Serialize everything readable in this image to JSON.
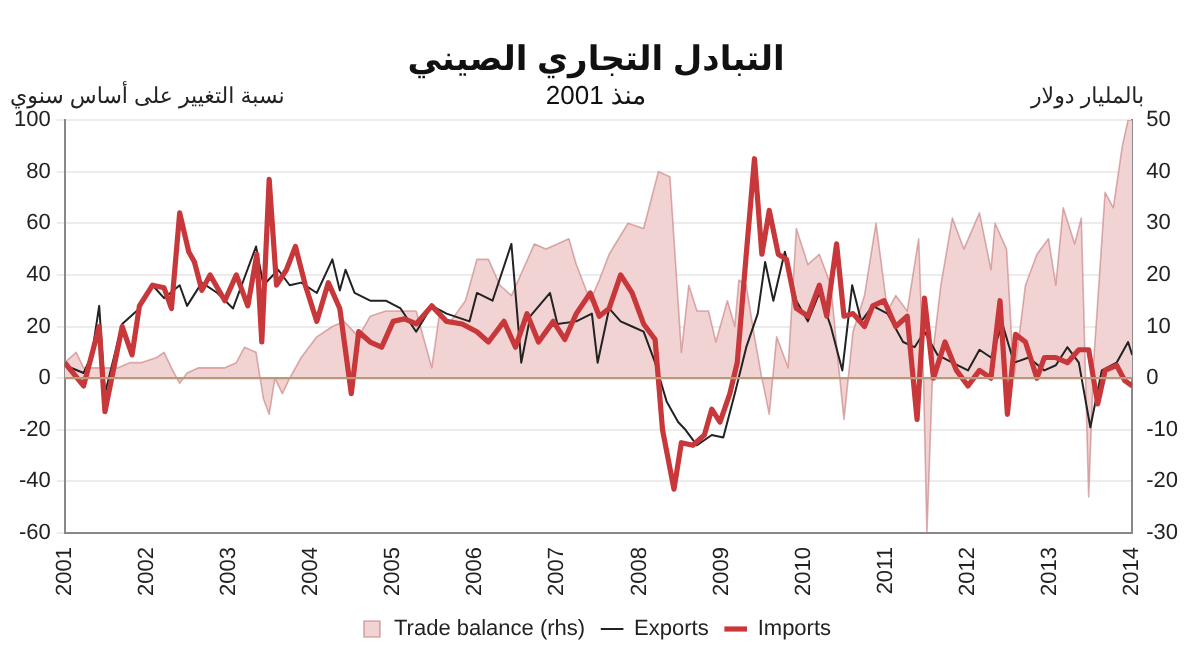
{
  "chart_data": {
    "type": "line",
    "title": "التبادل التجاري الصيني",
    "subtitle": "منذ 2001",
    "ylabel": "نسبة التغيير على أساس سنوي",
    "y2label": "بالمليار دولار",
    "xlim": [
      2001,
      2014
    ],
    "xticks": [
      2001,
      2002,
      2003,
      2004,
      2005,
      2006,
      2007,
      2008,
      2009,
      2010,
      2011,
      2012,
      2013,
      2014
    ],
    "ylim": [
      -60,
      100
    ],
    "yticks": [
      -60,
      -40,
      -20,
      0,
      20,
      40,
      60,
      80,
      100
    ],
    "y2lim": [
      -30,
      50
    ],
    "y2ticks": [
      -30,
      -20,
      -10,
      0,
      10,
      20,
      30,
      40,
      50
    ],
    "grid": "y",
    "ref_lines": [
      {
        "axis": "y",
        "value": 0,
        "color": "#b89a7a"
      }
    ],
    "legend": "bottom",
    "marker": "none",
    "line_style": "solid",
    "series": [
      {
        "name": "Trade balance (rhs)",
        "type": "area",
        "axis": "y2",
        "color": "#f2d3d3",
        "x": [
          2001.0,
          2001.14,
          2001.23,
          2001.37,
          2001.65,
          2001.79,
          2001.93,
          2002.12,
          2002.21,
          2002.3,
          2002.4,
          2002.49,
          2002.63,
          2002.77,
          2002.95,
          2003.09,
          2003.19,
          2003.33,
          2003.42,
          2003.49,
          2003.56,
          2003.65,
          2003.74,
          2003.88,
          2004.07,
          2004.26,
          2004.4,
          2004.58,
          2004.72,
          2004.91,
          2005.09,
          2005.28,
          2005.47,
          2005.56,
          2005.7,
          2005.88,
          2006.02,
          2006.16,
          2006.3,
          2006.44,
          2006.58,
          2006.72,
          2006.86,
          2007.0,
          2007.14,
          2007.23,
          2007.4,
          2007.51,
          2007.63,
          2007.86,
          2008.05,
          2008.23,
          2008.37,
          2008.51,
          2008.6,
          2008.7,
          2008.84,
          2008.93,
          2009.07,
          2009.16,
          2009.21,
          2009.3,
          2009.4,
          2009.49,
          2009.58,
          2009.67,
          2009.81,
          2009.91,
          2010.05,
          2010.19,
          2010.33,
          2010.42,
          2010.49,
          2010.6,
          2010.74,
          2010.88,
          2011.02,
          2011.12,
          2011.26,
          2011.4,
          2011.46,
          2011.5,
          2011.58,
          2011.67,
          2011.81,
          2011.95,
          2012.14,
          2012.28,
          2012.33,
          2012.47,
          2012.56,
          2012.7,
          2012.84,
          2012.98,
          2013.07,
          2013.16,
          2013.3,
          2013.38,
          2013.47,
          2013.53,
          2013.67,
          2013.77,
          2013.88,
          2013.95,
          2014.0
        ],
        "values": [
          3,
          5,
          2,
          2,
          2,
          3,
          3,
          4,
          5,
          2,
          -1,
          1,
          2,
          2,
          2,
          3,
          6,
          5,
          -4,
          -7,
          0,
          -3,
          0,
          4,
          8,
          10,
          11,
          8,
          12,
          13,
          13,
          13,
          2,
          12,
          11,
          15,
          23,
          23,
          18,
          16,
          21,
          26,
          25,
          26,
          27,
          22,
          15,
          19,
          24,
          30,
          29,
          40,
          39,
          5,
          18,
          13,
          13,
          7,
          15,
          10,
          19,
          18,
          8,
          0,
          -7,
          8,
          2,
          29,
          22,
          24,
          18,
          3,
          -8,
          9,
          16,
          30,
          13,
          16,
          13,
          27,
          -1,
          -30,
          6,
          18,
          31,
          25,
          32,
          21,
          30,
          25,
          0,
          18,
          24,
          27,
          18,
          33,
          26,
          31,
          -23,
          3,
          36,
          33,
          45,
          50,
          50
        ]
      },
      {
        "name": "Exports",
        "type": "line",
        "axis": "y",
        "color": "#222222",
        "x": [
          2001.0,
          2001.23,
          2001.33,
          2001.42,
          2001.49,
          2001.7,
          2001.91,
          2002.07,
          2002.21,
          2002.4,
          2002.49,
          2002.67,
          2002.86,
          2003.05,
          2003.19,
          2003.33,
          2003.42,
          2003.6,
          2003.74,
          2003.88,
          2004.07,
          2004.26,
          2004.35,
          2004.42,
          2004.53,
          2004.72,
          2004.91,
          2005.09,
          2005.28,
          2005.47,
          2005.65,
          2005.93,
          2006.02,
          2006.21,
          2006.44,
          2006.56,
          2006.67,
          2006.91,
          2007.0,
          2007.23,
          2007.42,
          2007.49,
          2007.63,
          2007.77,
          2007.91,
          2008.05,
          2008.19,
          2008.33,
          2008.47,
          2008.56,
          2008.7,
          2008.88,
          2009.02,
          2009.16,
          2009.3,
          2009.44,
          2009.53,
          2009.63,
          2009.77,
          2009.91,
          2010.05,
          2010.19,
          2010.33,
          2010.47,
          2010.59,
          2010.7,
          2010.84,
          2011.02,
          2011.21,
          2011.35,
          2011.47,
          2011.63,
          2011.81,
          2012.0,
          2012.14,
          2012.28,
          2012.42,
          2012.56,
          2012.74,
          2012.93,
          2013.07,
          2013.21,
          2013.35,
          2013.49,
          2013.63,
          2013.81,
          2013.95,
          2014.0
        ],
        "values": [
          5,
          2,
          9,
          28,
          -6,
          21,
          27,
          36,
          31,
          36,
          28,
          37,
          33,
          27,
          39,
          51,
          36,
          42,
          36,
          37,
          33,
          46,
          34,
          42,
          33,
          30,
          30,
          27,
          18,
          28,
          25,
          22,
          33,
          30,
          52,
          6,
          24,
          33,
          21,
          22,
          25,
          6,
          27,
          22,
          20,
          18,
          6,
          -9,
          -17,
          -20,
          -26,
          -22,
          -23,
          -6,
          12,
          25,
          45,
          30,
          49,
          30,
          22,
          33,
          20,
          3,
          36,
          22,
          28,
          25,
          14,
          12,
          18,
          9,
          6,
          3,
          11,
          8,
          21,
          6,
          8,
          3,
          5,
          12,
          6,
          -19,
          3,
          6,
          14,
          9
        ]
      },
      {
        "name": "Imports",
        "type": "line",
        "axis": "y",
        "color": "#c8373a",
        "x": [
          2001.0,
          2001.23,
          2001.42,
          2001.49,
          2001.7,
          2001.82,
          2001.91,
          2002.07,
          2002.21,
          2002.3,
          2002.4,
          2002.51,
          2002.58,
          2002.67,
          2002.77,
          2002.95,
          2003.09,
          2003.23,
          2003.34,
          2003.4,
          2003.49,
          2003.58,
          2003.7,
          2003.81,
          2003.93,
          2004.07,
          2004.21,
          2004.35,
          2004.49,
          2004.58,
          2004.72,
          2004.86,
          2005.0,
          2005.14,
          2005.28,
          2005.47,
          2005.65,
          2005.84,
          2006.02,
          2006.16,
          2006.35,
          2006.49,
          2006.63,
          2006.77,
          2006.95,
          2007.09,
          2007.23,
          2007.4,
          2007.51,
          2007.63,
          2007.77,
          2007.91,
          2008.05,
          2008.19,
          2008.28,
          2008.42,
          2008.51,
          2008.65,
          2008.79,
          2008.88,
          2008.98,
          2009.1,
          2009.19,
          2009.3,
          2009.4,
          2009.49,
          2009.58,
          2009.69,
          2009.79,
          2009.91,
          2010.05,
          2010.19,
          2010.28,
          2010.4,
          2010.49,
          2010.6,
          2010.74,
          2010.84,
          2010.98,
          2011.12,
          2011.26,
          2011.38,
          2011.47,
          2011.58,
          2011.72,
          2011.86,
          2012.0,
          2012.14,
          2012.28,
          2012.39,
          2012.48,
          2012.58,
          2012.7,
          2012.84,
          2012.93,
          2013.07,
          2013.21,
          2013.35,
          2013.47,
          2013.58,
          2013.67,
          2013.81,
          2013.91,
          2014.0
        ],
        "values": [
          6,
          -3,
          20,
          -13,
          20,
          9,
          28,
          36,
          35,
          27,
          64,
          49,
          45,
          34,
          40,
          30,
          40,
          28,
          48,
          14,
          77,
          36,
          42,
          51,
          36,
          22,
          37,
          27,
          -6,
          18,
          14,
          12,
          22,
          23,
          21,
          28,
          22,
          21,
          18,
          14,
          22,
          12,
          25,
          14,
          22,
          15,
          25,
          33,
          24,
          27,
          40,
          33,
          21,
          15,
          -20,
          -43,
          -25,
          -26,
          -22,
          -12,
          -17,
          -6,
          6,
          48,
          85,
          48,
          65,
          48,
          46,
          27,
          24,
          36,
          24,
          52,
          24,
          25,
          20,
          28,
          30,
          20,
          24,
          -16,
          31,
          0,
          14,
          3,
          -3,
          3,
          0,
          30,
          -14,
          17,
          14,
          0,
          8,
          8,
          6,
          11,
          11,
          -10,
          3,
          5,
          -1,
          -3
        ]
      }
    ]
  }
}
